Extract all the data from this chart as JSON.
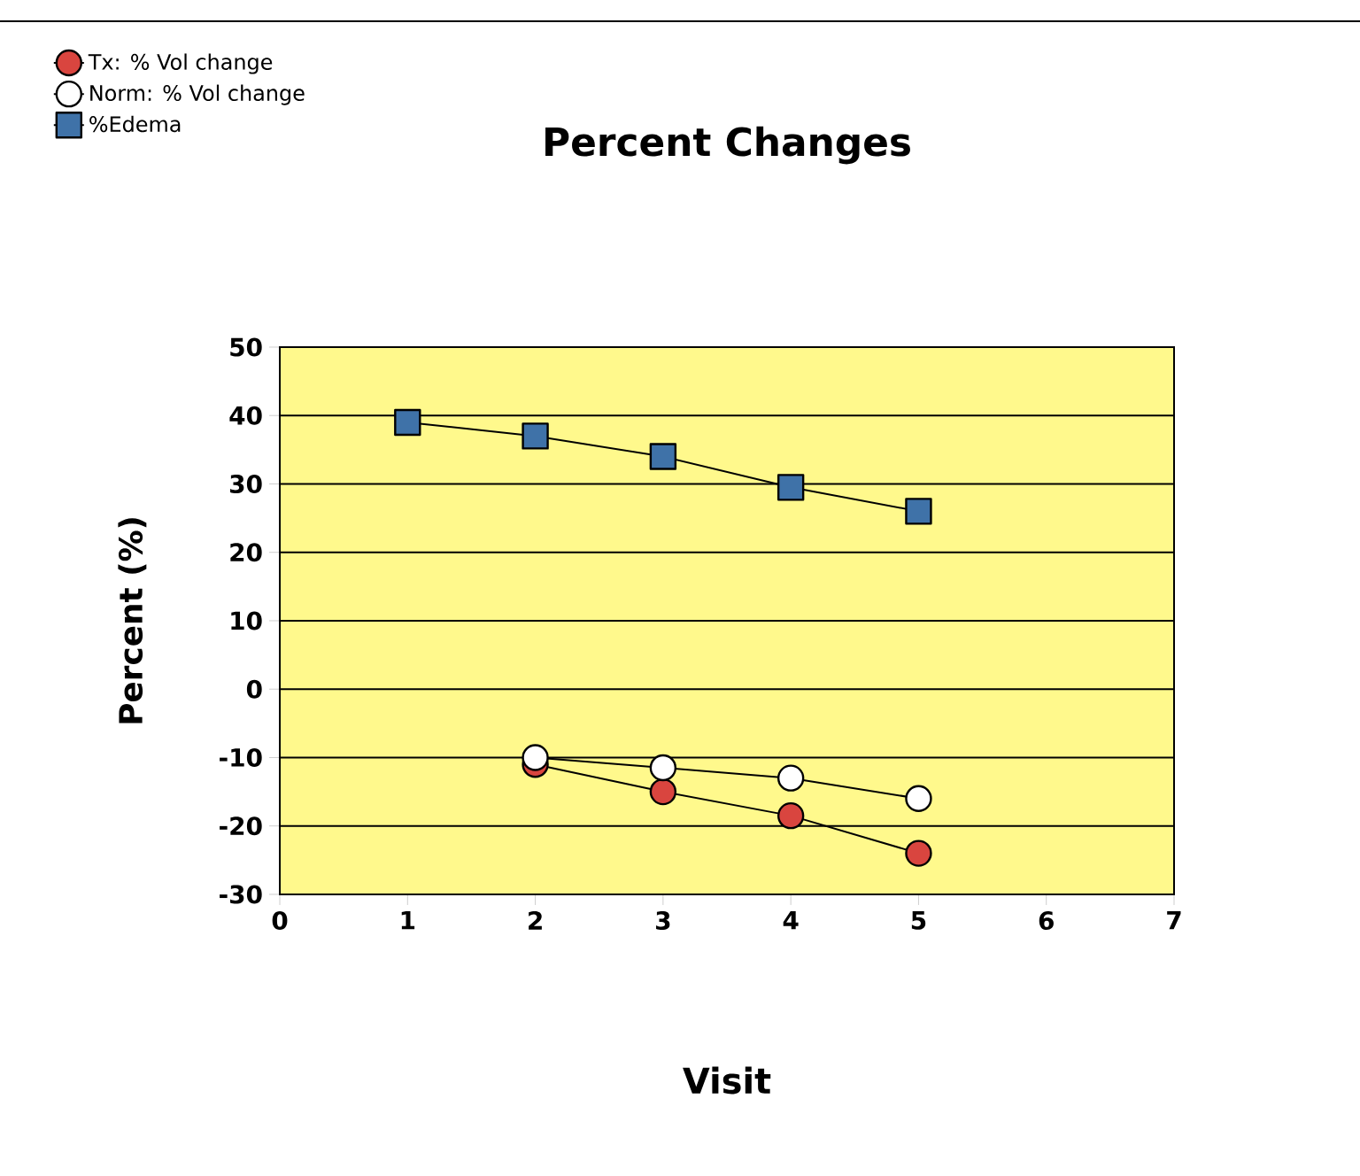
{
  "chart_data": {
    "type": "line",
    "title": "Percent Changes",
    "xlabel": "Visit",
    "ylabel": "Percent  (%)",
    "xlim": [
      0,
      7
    ],
    "xticks": [
      0,
      1,
      2,
      3,
      4,
      5,
      6,
      7
    ],
    "ylim": [
      -30,
      50
    ],
    "yticks": [
      -30,
      -20,
      -10,
      0,
      10,
      20,
      30,
      40,
      50
    ],
    "grid": "y",
    "legend": "top left",
    "series": [
      {
        "name": "Tx: % Vol change",
        "color": "#d9453f",
        "marker": "circle",
        "x": [
          2,
          3,
          4,
          5
        ],
        "values": [
          -11,
          -15,
          -18.5,
          -24
        ]
      },
      {
        "name": "Norm: % Vol change",
        "color": "#ffffff",
        "marker": "circle",
        "x": [
          2,
          3,
          4,
          5
        ],
        "values": [
          -10,
          -11.5,
          -13,
          -16
        ]
      },
      {
        "name": "%Edema",
        "color": "#3f72a8",
        "marker": "square",
        "x": [
          1,
          2,
          3,
          4,
          5
        ],
        "values": [
          39,
          37,
          34,
          29.5,
          26
        ]
      }
    ]
  }
}
